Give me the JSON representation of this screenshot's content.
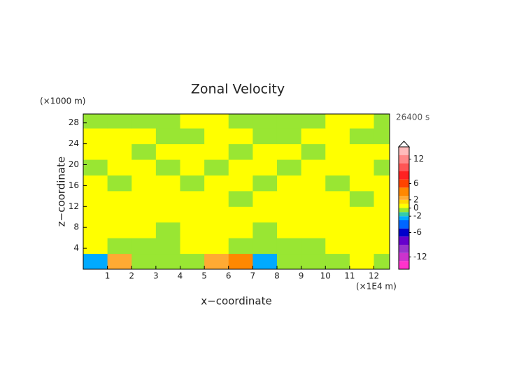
{
  "chart_data": {
    "type": "contour",
    "title": "Zonal Velocity",
    "x_label": "x−coordinate",
    "y_label": "z−coordinate",
    "x_unit": "(×1E4 m)",
    "y_unit": "(×1000 m)",
    "time_label": "26400 s",
    "xlim": [
      0,
      12.65
    ],
    "ylim": [
      0,
      29.7
    ],
    "xticks": [
      1,
      2,
      3,
      4,
      5,
      6,
      7,
      8,
      9,
      10,
      11,
      12
    ],
    "yticks": [
      4,
      8,
      12,
      16,
      20,
      24,
      28
    ],
    "x": [
      0.5,
      1.5,
      2.5,
      3.5,
      4.5,
      5.5,
      6.5,
      7.5,
      8.5,
      9.5,
      10.5,
      11.5,
      12.5
    ],
    "y": [
      1.5,
      4.5,
      7.5,
      10.5,
      13.5,
      16.5,
      19.5,
      22.5,
      25.5,
      28.5
    ],
    "z": [
      [
        -2.5,
        2.5,
        -0.5,
        -0.5,
        -0.5,
        2.5,
        4,
        -2.5,
        -0.5,
        -0.5,
        -0.5,
        0.5,
        -0.5
      ],
      [
        0.5,
        -0.5,
        -0.5,
        -0.5,
        0.5,
        0.5,
        -0.5,
        -0.5,
        -0.5,
        -0.5,
        0.5,
        0.5,
        0.5
      ],
      [
        0.5,
        0.5,
        0.5,
        -0.5,
        0.5,
        0.5,
        0.5,
        -0.5,
        0.5,
        0.5,
        0.5,
        0.5,
        0.5
      ],
      [
        0.5,
        0.5,
        0.5,
        0.5,
        0.5,
        0.5,
        0.5,
        0.5,
        0.5,
        0.5,
        0.5,
        0.5,
        0.5
      ],
      [
        0.5,
        0.5,
        0.5,
        0.5,
        0.5,
        0.5,
        -0.5,
        0.5,
        0.5,
        0.5,
        0.5,
        -0.5,
        0.5
      ],
      [
        0.5,
        -0.5,
        0.5,
        0.5,
        -0.5,
        0.5,
        0.5,
        -0.5,
        0.5,
        0.5,
        -0.5,
        0.5,
        0.5
      ],
      [
        -0.5,
        0.5,
        0.5,
        -0.5,
        0.5,
        -0.5,
        0.5,
        0.5,
        -0.5,
        0.5,
        0.5,
        0.5,
        -0.5
      ],
      [
        0.5,
        0.5,
        -0.5,
        0.5,
        0.5,
        0.5,
        -0.5,
        0.5,
        0.5,
        -0.5,
        0.5,
        0.5,
        0.5
      ],
      [
        0.5,
        0.5,
        0.5,
        -0.5,
        -0.5,
        0.5,
        0.5,
        -0.5,
        -0.5,
        0.5,
        0.5,
        -0.5,
        -0.5
      ],
      [
        -0.5,
        -0.5,
        -0.5,
        -0.5,
        0.5,
        0.5,
        -0.5,
        -0.5,
        -0.5,
        -0.5,
        0.5,
        0.5,
        -0.5
      ]
    ],
    "levels": [
      -15,
      -13,
      -11,
      -9,
      -7,
      -5,
      -3,
      -2,
      -1,
      0,
      1,
      2,
      3,
      5,
      7,
      9,
      11,
      13,
      15
    ],
    "colors": [
      "#ff33cc",
      "#cc33cc",
      "#9933cc",
      "#6600cc",
      "#0000cc",
      "#0066ff",
      "#00aaff",
      "#33ccaa",
      "#99e633",
      "#ffff00",
      "#ffd700",
      "#ffaa33",
      "#ff8800",
      "#ff4400",
      "#ff2222",
      "#ff5555",
      "#ff8888",
      "#ffbbbb"
    ],
    "colorbar_ticks": [
      12,
      6,
      2,
      0,
      -2,
      -6,
      -12
    ]
  }
}
